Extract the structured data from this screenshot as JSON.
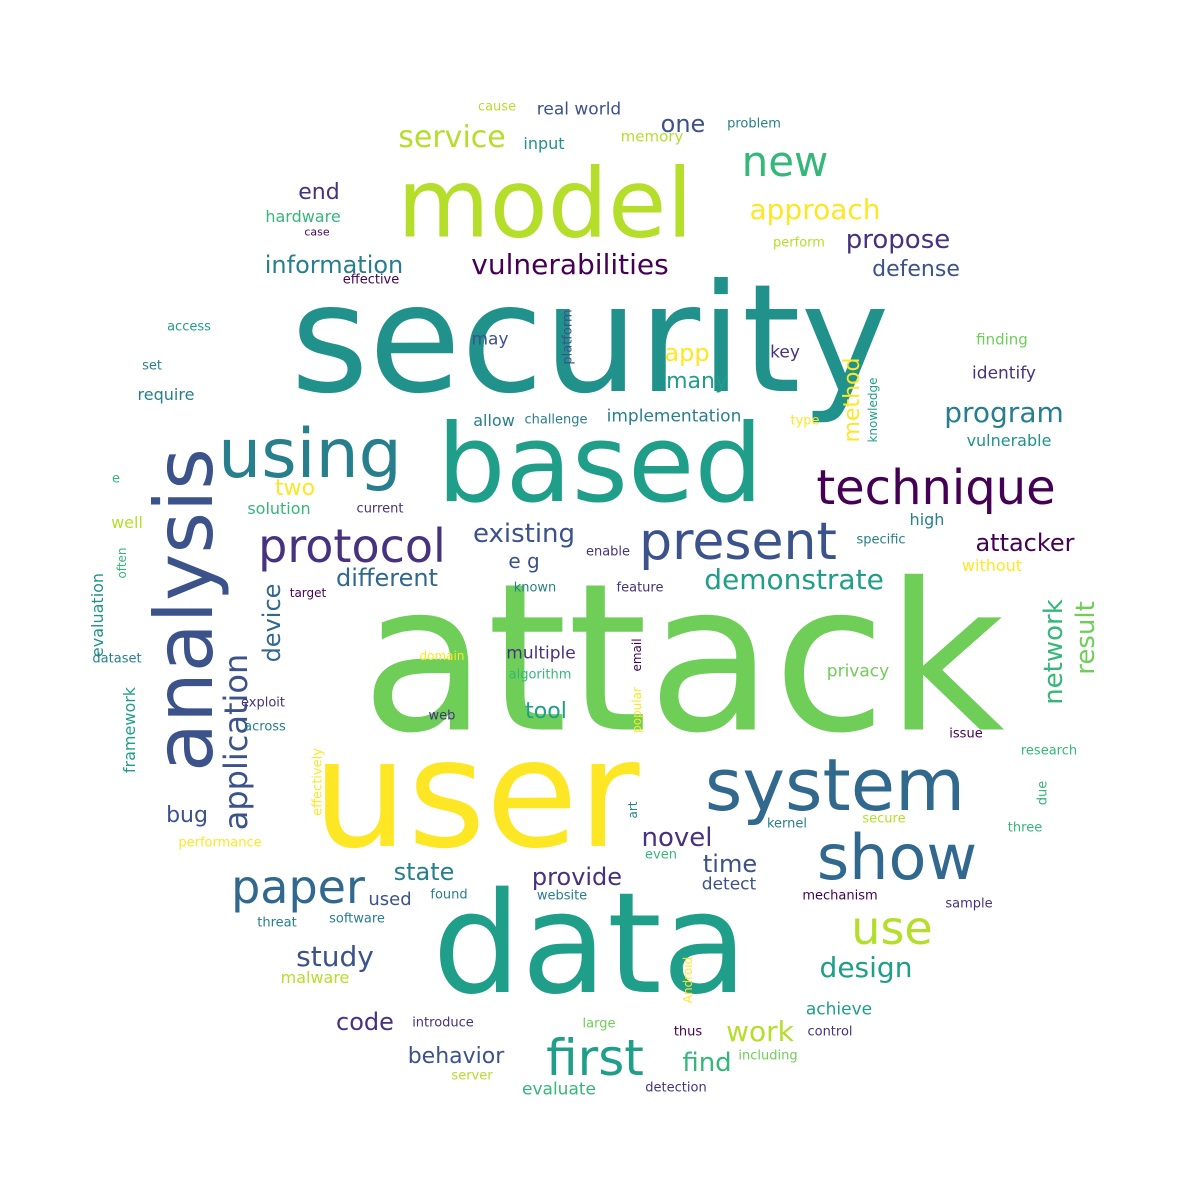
{
  "palette": {
    "dp": "#46327e",
    "dk": "#440154",
    "bl": "#3b528b",
    "sb": "#31688e",
    "tl": "#277f8e",
    "tg": "#21918c",
    "sg": "#1f9e89",
    "gr": "#35b779",
    "lg": "#6ece58",
    "yg": "#b5de2b",
    "ye": "#fde725"
  },
  "words": [
    {
      "text": "attack",
      "c": "lg"
    },
    {
      "text": "security",
      "c": "tg"
    },
    {
      "text": "user",
      "c": "ye"
    },
    {
      "text": "data",
      "c": "sg"
    },
    {
      "text": "based",
      "c": "sg"
    },
    {
      "text": "model",
      "c": "yg"
    },
    {
      "text": "analysis",
      "c": "bl"
    },
    {
      "text": "system",
      "c": "sb"
    },
    {
      "text": "using",
      "c": "tl"
    },
    {
      "text": "show",
      "c": "sb"
    },
    {
      "text": "present",
      "c": "bl"
    },
    {
      "text": "technique",
      "c": "dk"
    },
    {
      "text": "protocol",
      "c": "dp"
    },
    {
      "text": "paper",
      "c": "sb"
    },
    {
      "text": "first",
      "c": "sg"
    },
    {
      "text": "new",
      "c": "gr"
    },
    {
      "text": "use",
      "c": "yg"
    },
    {
      "text": "application",
      "c": "bl"
    },
    {
      "text": "vulnerabilities",
      "c": "dk"
    },
    {
      "text": "service",
      "c": "yg"
    },
    {
      "text": "approach",
      "c": "ye"
    },
    {
      "text": "information",
      "c": "tl"
    },
    {
      "text": "propose",
      "c": "dp"
    },
    {
      "text": "defense",
      "c": "bl"
    },
    {
      "text": "program",
      "c": "tl"
    },
    {
      "text": "demonstrate",
      "c": "sg"
    },
    {
      "text": "attacker",
      "c": "dk"
    },
    {
      "text": "existing",
      "c": "bl"
    },
    {
      "text": "different",
      "c": "sb"
    },
    {
      "text": "device",
      "c": "sb"
    },
    {
      "text": "network",
      "c": "gr"
    },
    {
      "text": "result",
      "c": "lg"
    },
    {
      "text": "design",
      "c": "sg"
    },
    {
      "text": "study",
      "c": "bl"
    },
    {
      "text": "work",
      "c": "yg"
    },
    {
      "text": "novel",
      "c": "dp"
    },
    {
      "text": "provide",
      "c": "dp"
    },
    {
      "text": "state",
      "c": "tl"
    },
    {
      "text": "time",
      "c": "bl"
    },
    {
      "text": "find",
      "c": "gr"
    },
    {
      "text": "code",
      "c": "dp"
    },
    {
      "text": "behavior",
      "c": "bl"
    },
    {
      "text": "one",
      "c": "bl"
    },
    {
      "text": "app",
      "c": "ye"
    },
    {
      "text": "many",
      "c": "sg"
    },
    {
      "text": "method",
      "c": "ye"
    },
    {
      "text": "end",
      "c": "dp"
    },
    {
      "text": "two",
      "c": "ye"
    },
    {
      "text": "bug",
      "c": "bl"
    },
    {
      "text": "tool",
      "c": "sg"
    },
    {
      "text": "e g",
      "c": "bl"
    },
    {
      "text": "used",
      "c": "bl"
    },
    {
      "text": "multiple",
      "c": "dp"
    },
    {
      "text": "detect",
      "c": "bl"
    },
    {
      "text": "privacy",
      "c": "lg"
    },
    {
      "text": "evaluate",
      "c": "gr"
    },
    {
      "text": "achieve",
      "c": "sg"
    },
    {
      "text": "real world",
      "c": "bl"
    },
    {
      "text": "input",
      "c": "tg"
    },
    {
      "text": "memory",
      "c": "yg"
    },
    {
      "text": "cause",
      "c": "yg"
    },
    {
      "text": "problem",
      "c": "tl"
    },
    {
      "text": "hardware",
      "c": "gr"
    },
    {
      "text": "case",
      "c": "dk"
    },
    {
      "text": "perform",
      "c": "yg"
    },
    {
      "text": "effective",
      "c": "dk"
    },
    {
      "text": "access",
      "c": "sg"
    },
    {
      "text": "may",
      "c": "bl"
    },
    {
      "text": "platform",
      "c": "bl"
    },
    {
      "text": "key",
      "c": "dp"
    },
    {
      "text": "finding",
      "c": "lg"
    },
    {
      "text": "set",
      "c": "tl"
    },
    {
      "text": "require",
      "c": "tl"
    },
    {
      "text": "allow",
      "c": "tl"
    },
    {
      "text": "challenge",
      "c": "tl"
    },
    {
      "text": "implementation",
      "c": "tl"
    },
    {
      "text": "type",
      "c": "ye"
    },
    {
      "text": "knowledge",
      "c": "sg"
    },
    {
      "text": "identify",
      "c": "dp"
    },
    {
      "text": "vulnerable",
      "c": "tg"
    },
    {
      "text": "e",
      "c": "gr"
    },
    {
      "text": "solution",
      "c": "gr"
    },
    {
      "text": "current",
      "c": "dp"
    },
    {
      "text": "well",
      "c": "yg"
    },
    {
      "text": "high",
      "c": "tl"
    },
    {
      "text": "specific",
      "c": "tl"
    },
    {
      "text": "enable",
      "c": "dp"
    },
    {
      "text": "without",
      "c": "ye"
    },
    {
      "text": "target",
      "c": "dk"
    },
    {
      "text": "known",
      "c": "tl"
    },
    {
      "text": "feature",
      "c": "dp"
    },
    {
      "text": "evaluation",
      "c": "tg"
    },
    {
      "text": "often",
      "c": "gr"
    },
    {
      "text": "dataset",
      "c": "tl"
    },
    {
      "text": "framework",
      "c": "sg"
    },
    {
      "text": "domain",
      "c": "ye"
    },
    {
      "text": "email",
      "c": "dk"
    },
    {
      "text": "algorithm",
      "c": "gr"
    },
    {
      "text": "exploit",
      "c": "dp"
    },
    {
      "text": "across",
      "c": "tl"
    },
    {
      "text": "web",
      "c": "dp"
    },
    {
      "text": "popular",
      "c": "ye"
    },
    {
      "text": "issue",
      "c": "dk"
    },
    {
      "text": "research",
      "c": "gr"
    },
    {
      "text": "due",
      "c": "gr"
    },
    {
      "text": "effectively",
      "c": "ye"
    },
    {
      "text": "art",
      "c": "tl"
    },
    {
      "text": "kernel",
      "c": "tl"
    },
    {
      "text": "secure",
      "c": "yg"
    },
    {
      "text": "three",
      "c": "gr"
    },
    {
      "text": "performance",
      "c": "ye"
    },
    {
      "text": "even",
      "c": "gr"
    },
    {
      "text": "threat",
      "c": "tl"
    },
    {
      "text": "software",
      "c": "tl"
    },
    {
      "text": "found",
      "c": "tl"
    },
    {
      "text": "website",
      "c": "tl"
    },
    {
      "text": "mechanism",
      "c": "dk"
    },
    {
      "text": "sample",
      "c": "dp"
    },
    {
      "text": "malware",
      "c": "yg"
    },
    {
      "text": "Android",
      "c": "ye"
    },
    {
      "text": "introduce",
      "c": "dp"
    },
    {
      "text": "large",
      "c": "lg"
    },
    {
      "text": "thus",
      "c": "dk"
    },
    {
      "text": "control",
      "c": "dp"
    },
    {
      "text": "including",
      "c": "lg"
    },
    {
      "text": "server",
      "c": "yg"
    },
    {
      "text": "detection",
      "c": "dp"
    }
  ]
}
